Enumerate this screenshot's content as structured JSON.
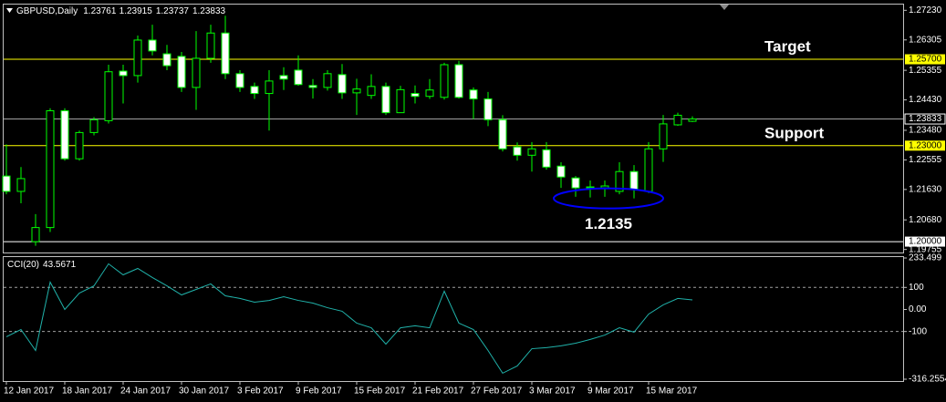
{
  "chart_data": [
    {
      "type": "candlestick",
      "title": "GBPUSD,Daily",
      "categories": [
        "12 Jan 2017",
        null,
        null,
        null,
        "18 Jan 2017",
        null,
        null,
        null,
        "24 Jan 2017",
        null,
        null,
        null,
        "30 Jan 2017",
        null,
        null,
        null,
        "3 Feb 2017",
        null,
        null,
        null,
        "9 Feb 2017",
        null,
        null,
        null,
        "15 Feb 2017",
        null,
        null,
        null,
        "21 Feb 2017",
        null,
        null,
        null,
        "27 Feb 2017",
        null,
        null,
        null,
        "3 Mar 2017",
        null,
        null,
        null,
        "9 Mar 2017",
        null,
        null,
        null,
        "15 Mar 2017",
        null,
        null,
        null
      ],
      "open": [
        1.2205,
        1.2157,
        1.2,
        1.2044,
        1.2409,
        1.2259,
        1.2341,
        1.2378,
        1.2533,
        1.2519,
        1.263,
        1.2587,
        1.2579,
        1.2482,
        1.2573,
        1.2652,
        1.2525,
        1.2485,
        1.2463,
        1.2519,
        1.2536,
        1.2488,
        1.2482,
        1.2522,
        1.2465,
        1.2457,
        1.2485,
        1.2403,
        1.2463,
        1.2454,
        1.2451,
        1.2553,
        1.2474,
        1.2446,
        1.2381,
        1.2296,
        1.227,
        1.2287,
        1.2236,
        1.2199,
        1.2168,
        1.2168,
        1.2157,
        1.2219,
        1.2157,
        1.229,
        1.2365,
        1.23761
      ],
      "high": [
        1.2304,
        1.2233,
        1.2086,
        1.2417,
        1.2417,
        1.2347,
        1.2389,
        1.2553,
        1.2553,
        1.2644,
        1.2678,
        1.2615,
        1.2593,
        1.2658,
        1.2678,
        1.2706,
        1.2536,
        1.2497,
        1.2536,
        1.2545,
        1.2582,
        1.2508,
        1.2536,
        1.2555,
        1.2509,
        1.2523,
        1.2497,
        1.2487,
        1.2488,
        1.2508,
        1.2559,
        1.2565,
        1.2482,
        1.2468,
        1.2395,
        1.231,
        1.2311,
        1.2311,
        1.2248,
        1.2205,
        1.2191,
        1.2191,
        1.2248,
        1.2239,
        1.2311,
        1.2396,
        1.2403,
        1.23915
      ],
      "low": [
        1.2148,
        1.212,
        1.1987,
        1.203,
        1.2253,
        1.2253,
        1.2332,
        1.2369,
        1.2432,
        1.2497,
        1.2582,
        1.2536,
        1.2468,
        1.2412,
        1.2559,
        1.2508,
        1.2468,
        1.2446,
        1.2347,
        1.2474,
        1.2487,
        1.2447,
        1.2472,
        1.2446,
        1.2396,
        1.2446,
        1.2396,
        1.2402,
        1.2432,
        1.2446,
        1.2444,
        1.2447,
        1.2383,
        1.2361,
        1.2282,
        1.2253,
        1.2219,
        1.2225,
        1.2168,
        1.214,
        1.2138,
        1.214,
        1.2148,
        1.2135,
        1.2152,
        1.2249,
        1.2362,
        1.23737
      ],
      "close": [
        1.2157,
        1.2197,
        1.2044,
        1.2409,
        1.2259,
        1.2341,
        1.2381,
        1.2531,
        1.2519,
        1.263,
        1.2596,
        1.255,
        1.2482,
        1.2573,
        1.2652,
        1.2525,
        1.2482,
        1.2463,
        1.2502,
        1.2508,
        1.2491,
        1.2482,
        1.2525,
        1.2465,
        1.2477,
        1.2485,
        1.2403,
        1.2475,
        1.2454,
        1.2474,
        1.2553,
        1.2451,
        1.2446,
        1.2381,
        1.229,
        1.227,
        1.229,
        1.2233,
        1.2202,
        1.2168,
        1.2171,
        1.2174,
        1.2219,
        1.2163,
        1.229,
        1.2368,
        1.2395,
        1.23833
      ],
      "up_color": "#000000",
      "down_color": "#ffffff",
      "wick_color": "#00ff00",
      "ylim": [
        1.1966,
        1.2741
      ],
      "yticks": [
        {
          "value": 1.2723,
          "label": "1.27230"
        },
        1.26305,
        1.25355,
        {
          "value": 1.2443,
          "label": "1.24430"
        },
        {
          "value": 1.2348,
          "label": "1.23480"
        },
        1.22555,
        {
          "value": 1.2163,
          "label": "1.21630"
        },
        {
          "value": 1.2068,
          "label": "1.20680"
        },
        1.19755
      ],
      "hlines": [
        {
          "value": 1.257,
          "label": "1.25700",
          "color": "#ffff00",
          "text": "Target"
        },
        {
          "value": 1.23,
          "label": "1.23000",
          "color": "#ffff00",
          "text": "Support"
        },
        {
          "value": 1.2,
          "label": "1.20000",
          "color": "#ffffff"
        }
      ],
      "annotation": {
        "value": 1.2135,
        "color": "#0000ff"
      }
    },
    {
      "type": "line",
      "name": "CCI(20)",
      "color": "#20b2aa",
      "values": [
        -124,
        -91,
        -186,
        124,
        0,
        74,
        107,
        207,
        157,
        186,
        145,
        107,
        66,
        91,
        116,
        62,
        50,
        33,
        41,
        58,
        41,
        29,
        8,
        -8,
        -62,
        -83,
        -157,
        -83,
        -74,
        -83,
        83,
        -62,
        -91,
        -186,
        -289,
        -256,
        -178,
        -173,
        -165,
        -153,
        -136,
        -116,
        -83,
        -103,
        -21,
        21,
        50,
        43.5671
      ],
      "ylim": [
        -316.2554,
        233.499
      ],
      "yticks": [
        233.499,
        100,
        {
          "value": 0,
          "label": "0.00"
        },
        -100,
        -316.2554
      ],
      "levels": [
        100,
        -100
      ]
    }
  ]
}
